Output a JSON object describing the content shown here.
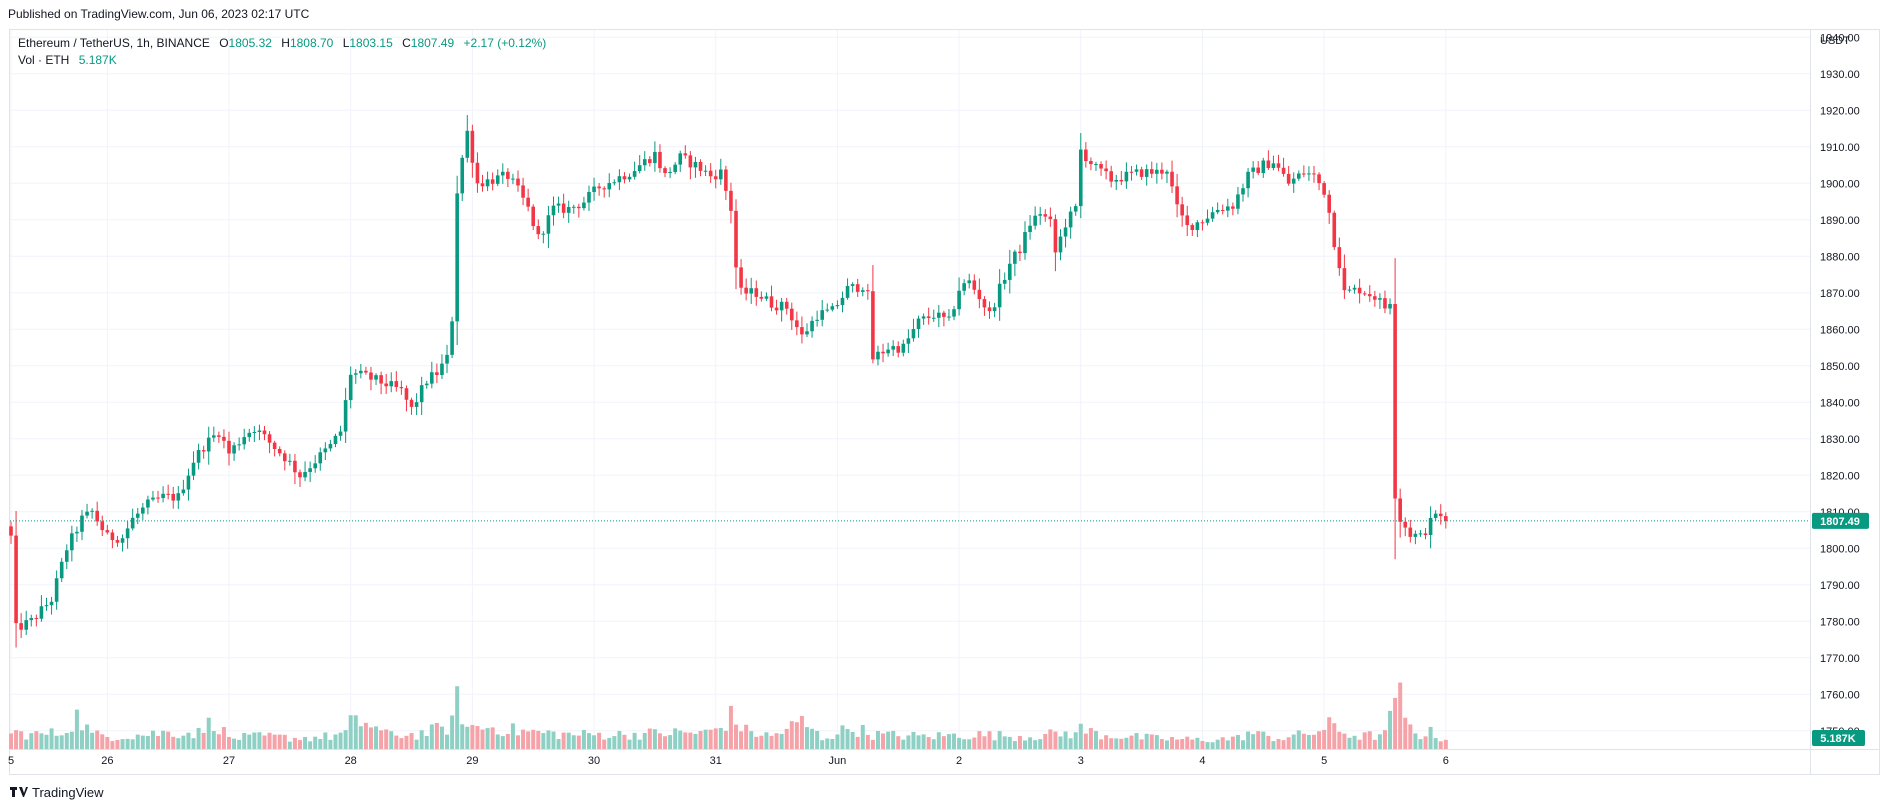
{
  "published": "Published on TradingView.com, Jun 06, 2023 02:17 UTC",
  "legend": {
    "symbol": "Ethereum / TetherUS, 1h, BINANCE",
    "open_label": "O",
    "open": "1805.32",
    "high_label": "H",
    "high": "1808.70",
    "low_label": "L",
    "low": "1803.15",
    "close_label": "C",
    "close": "1807.49",
    "change": "+2.17 (+0.12%)",
    "vol_label": "Vol · ETH",
    "vol_value": "5.187K"
  },
  "footer": {
    "brand": "TradingView",
    "logo_icon": "tradingview-logo-icon"
  },
  "colors": {
    "up": "#089981",
    "down": "#f23645",
    "vol_up": "#8fd0c5",
    "vol_down": "#f5a3a8",
    "grid": "#f0f3fa",
    "axis_text": "#131722"
  },
  "chart_data": {
    "type": "candlestick",
    "symbol": "ETHUSDT",
    "interval": "1h",
    "currency": "USDT",
    "ylim": [
      1745,
      1942
    ],
    "y_ticks": [
      1750,
      1760,
      1770,
      1780,
      1790,
      1800,
      1810,
      1820,
      1830,
      1840,
      1850,
      1860,
      1870,
      1880,
      1890,
      1900,
      1910,
      1920,
      1930,
      1940
    ],
    "y_tick_labels": [
      "1750.00",
      "1760.00",
      "1770.00",
      "1780.00",
      "1790.00",
      "1800.00",
      "1810.00",
      "1820.00",
      "1830.00",
      "1840.00",
      "1850.00",
      "1860.00",
      "1870.00",
      "1880.00",
      "1890.00",
      "1900.00",
      "1910.00",
      "1920.00",
      "1930.00",
      "1940.00"
    ],
    "x_ticks": [
      {
        "label": "5",
        "bar": 0
      },
      {
        "label": "26",
        "bar": 19
      },
      {
        "label": "27",
        "bar": 43
      },
      {
        "label": "28",
        "bar": 67
      },
      {
        "label": "29",
        "bar": 91
      },
      {
        "label": "30",
        "bar": 115
      },
      {
        "label": "31",
        "bar": 139
      },
      {
        "label": "Jun",
        "bar": 163
      },
      {
        "label": "2",
        "bar": 187
      },
      {
        "label": "3",
        "bar": 211
      },
      {
        "label": "4",
        "bar": 235
      },
      {
        "label": "5",
        "bar": 259
      },
      {
        "label": "6",
        "bar": 283
      }
    ],
    "last_price": "1807.49",
    "last_volume": "5.187K",
    "waypoints": [
      [
        0,
        1803
      ],
      [
        1,
        1778
      ],
      [
        4,
        1780
      ],
      [
        8,
        1786
      ],
      [
        11,
        1800
      ],
      [
        14,
        1808
      ],
      [
        16,
        1810
      ],
      [
        19,
        1803
      ],
      [
        22,
        1803
      ],
      [
        24,
        1808
      ],
      [
        27,
        1812
      ],
      [
        30,
        1814
      ],
      [
        33,
        1814
      ],
      [
        36,
        1824
      ],
      [
        38,
        1828
      ],
      [
        41,
        1832
      ],
      [
        43,
        1826
      ],
      [
        46,
        1831
      ],
      [
        48,
        1833
      ],
      [
        51,
        1829
      ],
      [
        54,
        1825
      ],
      [
        57,
        1820
      ],
      [
        60,
        1824
      ],
      [
        63,
        1828
      ],
      [
        65,
        1832
      ],
      [
        67,
        1848
      ],
      [
        70,
        1847
      ],
      [
        74,
        1845
      ],
      [
        77,
        1843
      ],
      [
        79,
        1838
      ],
      [
        82,
        1846
      ],
      [
        84,
        1848
      ],
      [
        86,
        1852
      ],
      [
        87,
        1863
      ],
      [
        88,
        1898
      ],
      [
        89,
        1907
      ],
      [
        90,
        1914
      ],
      [
        91,
        1907
      ],
      [
        92,
        1900
      ],
      [
        95,
        1901
      ],
      [
        98,
        1902
      ],
      [
        100,
        1898
      ],
      [
        102,
        1893
      ],
      [
        104,
        1885
      ],
      [
        107,
        1893
      ],
      [
        110,
        1893
      ],
      [
        113,
        1895
      ],
      [
        116,
        1899
      ],
      [
        119,
        1901
      ],
      [
        122,
        1903
      ],
      [
        125,
        1906
      ],
      [
        127,
        1908
      ],
      [
        129,
        1902
      ],
      [
        132,
        1907
      ],
      [
        135,
        1905
      ],
      [
        138,
        1902
      ],
      [
        140,
        1903
      ],
      [
        141,
        1898
      ],
      [
        142,
        1893
      ],
      [
        143,
        1877
      ],
      [
        144,
        1870
      ],
      [
        147,
        1870
      ],
      [
        150,
        1867
      ],
      [
        153,
        1866
      ],
      [
        156,
        1858
      ],
      [
        159,
        1864
      ],
      [
        162,
        1865
      ],
      [
        165,
        1871
      ],
      [
        168,
        1872
      ],
      [
        169,
        1869
      ],
      [
        170,
        1852
      ],
      [
        173,
        1855
      ],
      [
        176,
        1855
      ],
      [
        179,
        1862
      ],
      [
        182,
        1864
      ],
      [
        185,
        1862
      ],
      [
        187,
        1871
      ],
      [
        189,
        1873
      ],
      [
        191,
        1869
      ],
      [
        193,
        1864
      ],
      [
        195,
        1871
      ],
      [
        197,
        1878
      ],
      [
        199,
        1882
      ],
      [
        201,
        1889
      ],
      [
        203,
        1892
      ],
      [
        205,
        1889
      ],
      [
        206,
        1881
      ],
      [
        208,
        1889
      ],
      [
        210,
        1893
      ],
      [
        211,
        1909
      ],
      [
        214,
        1904
      ],
      [
        217,
        1901
      ],
      [
        220,
        1902
      ],
      [
        223,
        1903
      ],
      [
        226,
        1903
      ],
      [
        228,
        1904
      ],
      [
        230,
        1893
      ],
      [
        232,
        1888
      ],
      [
        235,
        1890
      ],
      [
        238,
        1893
      ],
      [
        241,
        1894
      ],
      [
        244,
        1902
      ],
      [
        247,
        1905
      ],
      [
        249,
        1906
      ],
      [
        252,
        1900
      ],
      [
        255,
        1903
      ],
      [
        257,
        1902
      ],
      [
        259,
        1898
      ],
      [
        260,
        1892
      ],
      [
        261,
        1884
      ],
      [
        262,
        1878
      ],
      [
        263,
        1870
      ],
      [
        266,
        1871
      ],
      [
        269,
        1869
      ],
      [
        271,
        1866
      ],
      [
        272,
        1868
      ],
      [
        273,
        1815
      ],
      [
        274,
        1808
      ],
      [
        276,
        1804
      ],
      [
        278,
        1803
      ],
      [
        280,
        1807
      ],
      [
        281,
        1810
      ],
      [
        282,
        1808
      ],
      [
        283,
        1807
      ]
    ],
    "volume_waypoints": [
      [
        0,
        9
      ],
      [
        5,
        8
      ],
      [
        10,
        9
      ],
      [
        13,
        18
      ],
      [
        16,
        8
      ],
      [
        20,
        7
      ],
      [
        26,
        8
      ],
      [
        30,
        9
      ],
      [
        37,
        9
      ],
      [
        40,
        16
      ],
      [
        43,
        6
      ],
      [
        50,
        7
      ],
      [
        57,
        6
      ],
      [
        63,
        7
      ],
      [
        66,
        9
      ],
      [
        67,
        14
      ],
      [
        70,
        15
      ],
      [
        74,
        8
      ],
      [
        80,
        8
      ],
      [
        86,
        12
      ],
      [
        87,
        15
      ],
      [
        88,
        26
      ],
      [
        89,
        20
      ],
      [
        90,
        12
      ],
      [
        95,
        12
      ],
      [
        100,
        10
      ],
      [
        110,
        8
      ],
      [
        120,
        8
      ],
      [
        130,
        9
      ],
      [
        137,
        9
      ],
      [
        140,
        12
      ],
      [
        142,
        18
      ],
      [
        145,
        10
      ],
      [
        150,
        7
      ],
      [
        156,
        15
      ],
      [
        160,
        6
      ],
      [
        166,
        12
      ],
      [
        170,
        8
      ],
      [
        180,
        7
      ],
      [
        190,
        8
      ],
      [
        200,
        7
      ],
      [
        205,
        8
      ],
      [
        210,
        9
      ],
      [
        211,
        11
      ],
      [
        215,
        8
      ],
      [
        225,
        6
      ],
      [
        235,
        5
      ],
      [
        242,
        6
      ],
      [
        244,
        9
      ],
      [
        250,
        6
      ],
      [
        255,
        8
      ],
      [
        258,
        10
      ],
      [
        260,
        13
      ],
      [
        263,
        9
      ],
      [
        266,
        7
      ],
      [
        271,
        8
      ],
      [
        272,
        16
      ],
      [
        273,
        34
      ],
      [
        274,
        28
      ],
      [
        275,
        14
      ],
      [
        276,
        12
      ],
      [
        278,
        8
      ],
      [
        280,
        9
      ],
      [
        283,
        5
      ]
    ]
  }
}
